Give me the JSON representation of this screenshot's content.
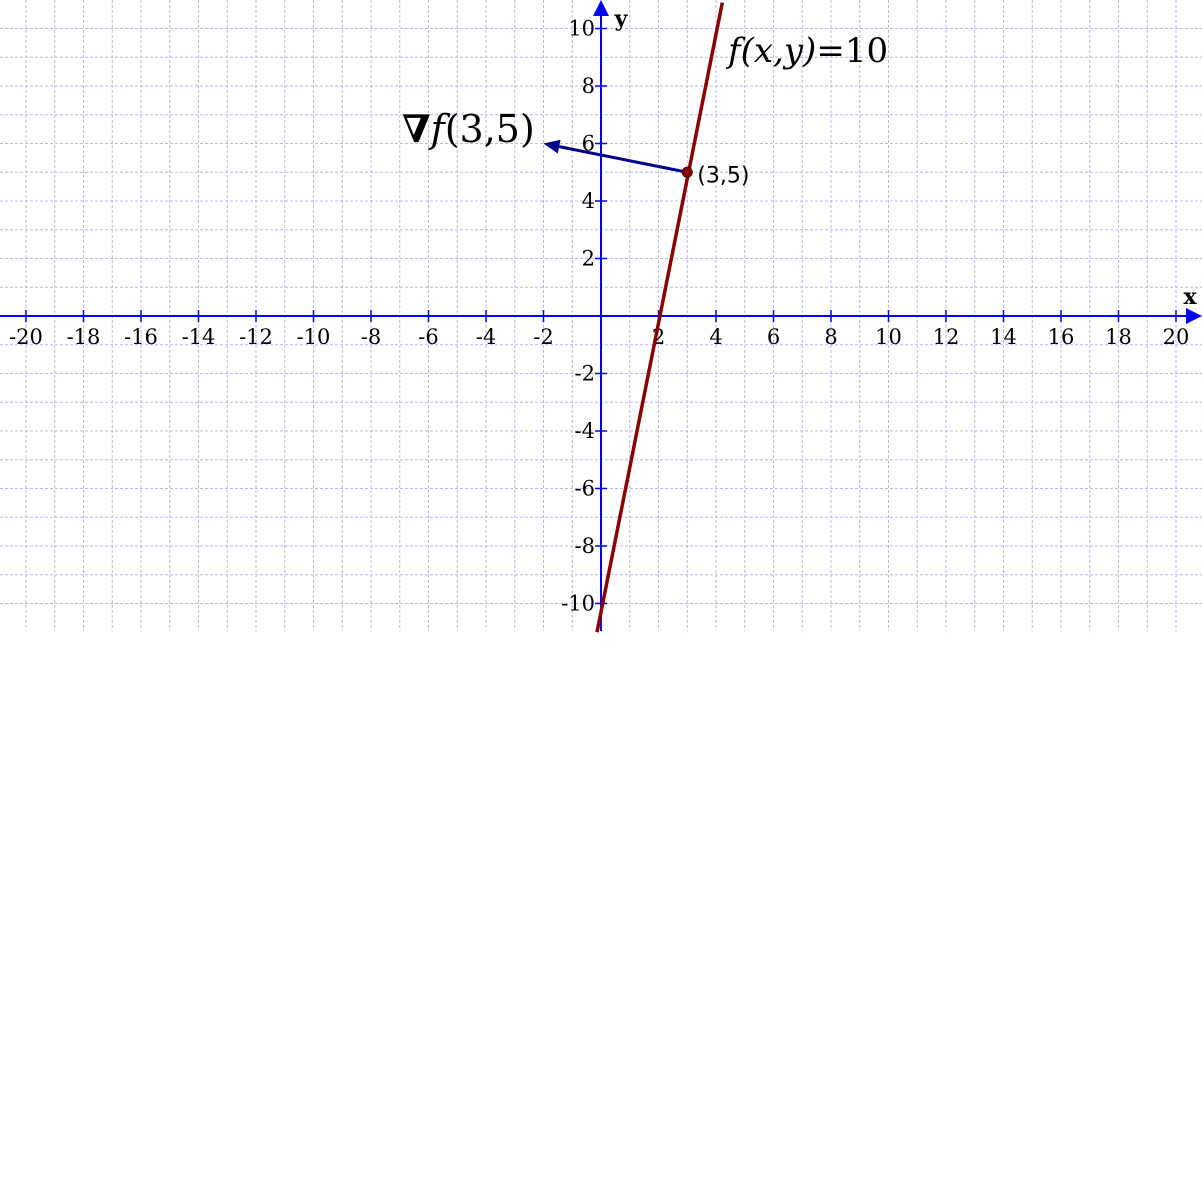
{
  "chart_data": {
    "type": "line",
    "title": "",
    "xlabel": "x",
    "ylabel": "y",
    "xlim": [
      -20.8,
      20.8
    ],
    "ylim": [
      -11,
      10.9
    ],
    "grid": true,
    "grid_step": 1,
    "x_ticks": [
      "-20",
      "-18",
      "-16",
      "-14",
      "-12",
      "-10",
      "-8",
      "-6",
      "-4",
      "-2",
      "2",
      "4",
      "6",
      "8",
      "10",
      "12",
      "14",
      "16",
      "18",
      "20"
    ],
    "y_ticks": [
      "10",
      "8",
      "6",
      "4",
      "2",
      "-2",
      "-4",
      "-6",
      "-8",
      "-10"
    ],
    "series": [
      {
        "name": "f(x,y)=10",
        "kind": "level-curve",
        "color": "#8b0000",
        "points": [
          [
            -0.14,
            -11
          ],
          [
            4.22,
            10.9
          ]
        ]
      }
    ],
    "point": {
      "x": 3,
      "y": 5,
      "label": "(3,5)",
      "color": "#8b0000"
    },
    "vector": {
      "label": "∇f(3,5)",
      "from": [
        3,
        5
      ],
      "to": [
        -2,
        6
      ],
      "color": "#00008b"
    },
    "annotations": {
      "curve_label_f": "f",
      "curve_label_args": "(x,y)",
      "curve_label_eq": "=10",
      "vector_label_nabla": "∇",
      "vector_label_f": "f",
      "vector_label_args": "(3,5)"
    },
    "colors": {
      "grid": "#b9b9ec",
      "axes": "#0000ff",
      "curve": "#8b0000",
      "vector": "#00008b"
    }
  }
}
